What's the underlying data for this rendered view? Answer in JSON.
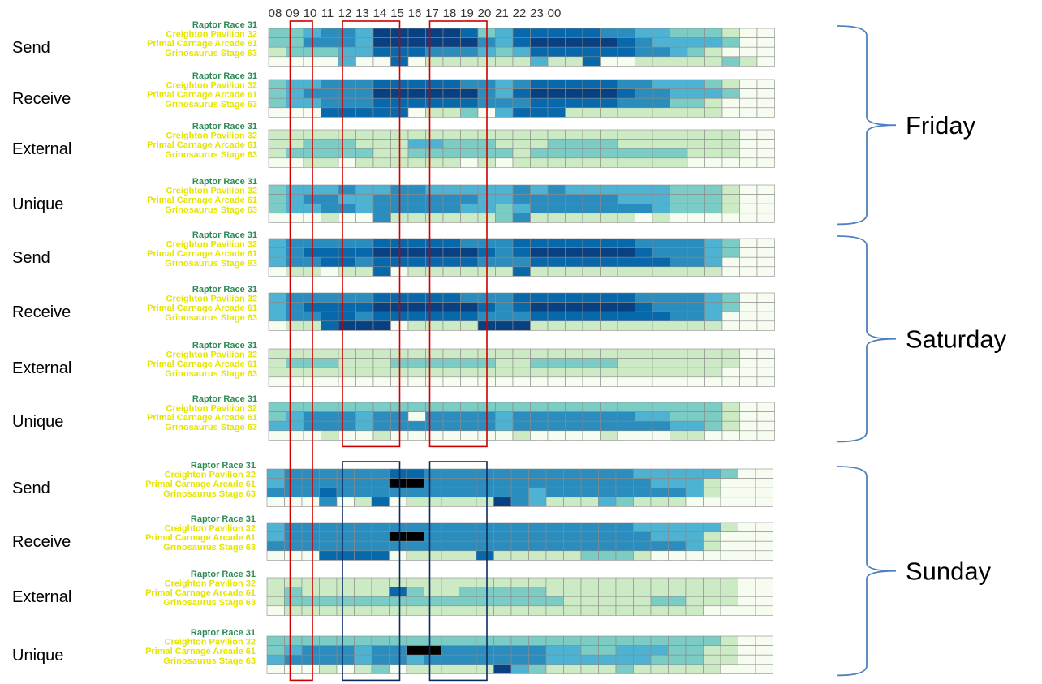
{
  "chart_data": {
    "type": "heatmap",
    "hours": [
      "08",
      "09",
      "10",
      "11",
      "12",
      "13",
      "14",
      "15",
      "16",
      "17",
      "18",
      "19",
      "20",
      "21",
      "22",
      "23",
      "00"
    ],
    "venues": [
      "Raptor Race 31",
      "Creighton Pavilion 32",
      "Primal Carnage Arcade 61",
      "Grinosaurus Stage 63"
    ],
    "panels": [
      {
        "day": "Friday",
        "metric": "Send",
        "grid": [
          "BBCDDCFFFFFEBCEEEEEDDCCBBBA00",
          "BBDDDCFFFFFFDCEFFFFFEDCCCCB00",
          "ABBBCCEEEDDDCBCEEEEEEDDCBA000",
          "0000C00E0AAAAAACAAE00AAAAABA0"
        ]
      },
      {
        "day": "Friday",
        "metric": "Receive",
        "grid": [
          "BCCDDDEEEEEDDCDEEEEEDDCCCBA00",
          "BCDDDDFFFFFFDCEFFFFFEDDCCCB00",
          "BCCDDDEEEEEEDDDEEEEEDDDBBA000",
          "000EEEEE0AAB0CEEEAAAAAAAAA000"
        ]
      },
      {
        "day": "Friday",
        "metric": "External",
        "grid": [
          "AAAAAAAAAAAAAAAAAAAAAAAAAAA00",
          "AABBBAAACCBBBAAABBBBAAAAAAA00",
          "ABBBBBAABBBBBBABBBBBBBBBAAA00",
          "00AA0AAAAAA0A0AAAAAAAAAA00000"
        ]
      },
      {
        "day": "Friday",
        "metric": "Unique",
        "grid": [
          "BCCCDCCDDCCCCCDCDCCCCCCBBBA00",
          "BCDDCCDDDDDDCCDDDDDDCCCBBBA00",
          "BCCDDCDDDDDCCBCDDDDDDDCBBBA00",
          "000A00DAAAAAABDAAAAAA0A000000"
        ]
      },
      {
        "day": "Saturday",
        "metric": "Send",
        "grid": [
          "CDDDDDEEEEEDDDEEEEEEEDDDDCB00",
          "CDEEEEFFFFFFEDEFFFFFFEDDDCB00",
          "CDDEEDEEEEEEDDDEEEEEEEEDDC000",
          "0AA0AAE0AAAAAAEAAAAAAAAAAA000"
        ]
      },
      {
        "day": "Saturday",
        "metric": "Receive",
        "grid": [
          "CDDDDDEEEEEDDDEEEEEEEDDDDCB00",
          "CDEEEEFFFFFFEDEFFFFFFEDDDCB00",
          "CDDEEDEEEEEEDDDEEEEEEEEDDC000",
          "0AAEFFF0AAAAFFFAAAAAAAAAAA000"
        ]
      },
      {
        "day": "Saturday",
        "metric": "External",
        "grid": [
          "AAAAAAAAAAAAAAAAAAAAAAAAAAA00",
          "ABBBAAABBBBBBAABBBBBAAAAAAA00",
          "AAAAAAAAAAAAAAAAAAAAAAAAAA000",
          "00000000000000000000000000000"
        ]
      },
      {
        "day": "Saturday",
        "metric": "Unique",
        "grid": [
          "BBBBBBBBBBBBBBBBBBBBBBBBBBA00",
          "BCDDDCDD0DDDDCDDDDDDDCCBBBA00",
          "CCDDDCDDDDDDDCDDDDDDDDDCCBA00",
          "000A00A0000000A0000A000AA0000"
        ]
      },
      {
        "day": "Sunday",
        "metric": "Send",
        "grid": [
          "CDDDDDDEEDDDDDDDDDDDDCCCCCB00",
          "CDDDDDDGGDDDDDDDDDDDDDCCCA000",
          "DDDEDDDDDDDDDDDCDDDDDDDDCA000",
          "000D0AE0AAAAAFDCAAACBAAA00000"
        ]
      },
      {
        "day": "Sunday",
        "metric": "Receive",
        "grid": [
          "CDDDDDDDDDDDDDDDDDDDDCCCCCA00",
          "CDDDDDDGGDDDDDDDDDDDDDCCCA000",
          "DDDDDDDDDDDDDDDDDDDDDDDDCA000",
          "000EEEE0AAAAEAAAAABBBA0000000"
        ]
      },
      {
        "day": "Sunday",
        "metric": "External",
        "grid": [
          "AAAAAAAAAAAAAAAAAAAAAAAAAAA00",
          "ABAAAAAEBAABBBBBAAAAAAAAAAA00",
          "ABBBBBBBBBBBBBBBBAAAAABBAAA00",
          "0AAAAAAAAAAAAAAAAAAAAAAAA0000"
        ]
      },
      {
        "day": "Sunday",
        "metric": "Unique",
        "grid": [
          "BBBBBBBBBBBBBBBBBBBBBBBBBBA00",
          "BCDDDCDDGGDDDDDDCCBBCCCBBAA00",
          "CDDDDCDDCDDDDDDDCCCCCCBBBAA00",
          "000A0AB0AAAAAFCBAAAABAAAAA000"
        ]
      }
    ],
    "palette": {
      "0": "#f7fcf0",
      "A": "#ccebc5",
      "B": "#7bccc4",
      "C": "#4eb3d3",
      "D": "#2b8cbe",
      "E": "#0868ac",
      "F": "#084081",
      "G": "#000000"
    },
    "highlight_boxes": [
      {
        "hour_start": "09",
        "hour_end": "10",
        "days": [
          "Friday",
          "Saturday",
          "Sunday"
        ],
        "color": "#cc0000"
      },
      {
        "hour_start": "12",
        "hour_end": "15",
        "days": [
          "Friday",
          "Saturday"
        ],
        "color": "#cc0000"
      },
      {
        "hour_start": "17",
        "hour_end": "20",
        "days": [
          "Friday",
          "Saturday"
        ],
        "color": "#cc0000"
      },
      {
        "hour_start": "12",
        "hour_end": "15",
        "days": [
          "Sunday"
        ],
        "color": "#0b2a5e"
      },
      {
        "hour_start": "17",
        "hour_end": "20",
        "days": [
          "Sunday"
        ],
        "color": "#0b2a5e"
      }
    ],
    "bracket_color": "#4f81bd",
    "venue_label_colors": [
      "#2e8b57",
      "#e5e500",
      "#e5e500",
      "#e5e500"
    ]
  }
}
